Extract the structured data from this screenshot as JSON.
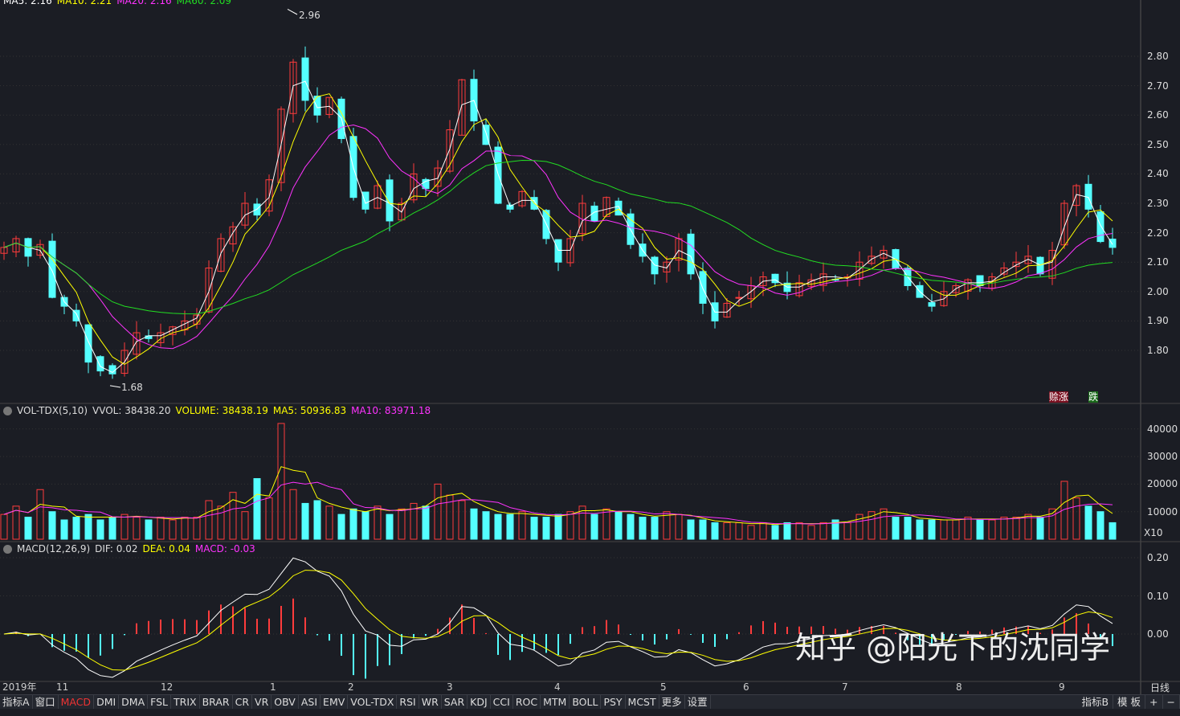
{
  "main": {
    "header_labels": [
      "MA5: 2.16",
      "MA10: 2.21",
      "MA20: 2.16",
      "MA60: 2.09"
    ],
    "high_label": "2.96",
    "low_label": "1.68",
    "marker_1": "赊",
    "marker_2": "涨",
    "marker_3": "跌",
    "price_ticks": [
      "2.80",
      "2.70",
      "2.60",
      "2.50",
      "2.40",
      "2.30",
      "2.20",
      "2.10",
      "2.00",
      "1.90",
      "1.80"
    ]
  },
  "volume": {
    "title": "VOL-TDX(5,10)",
    "vvol": "VVOL: 38438.20",
    "volume": "VOLUME: 38438.19",
    "ma5": "MA5: 50936.83",
    "ma10": "MA10: 83971.18",
    "ticks": [
      "40000",
      "30000",
      "20000",
      "10000"
    ],
    "unit": "X10"
  },
  "macd": {
    "title": "MACD(12,26,9)",
    "dif": "DIF: 0.02",
    "dea": "DEA: 0.04",
    "macd": "MACD: -0.03",
    "ticks": [
      "0.20",
      "0.10",
      "0.00"
    ]
  },
  "time_axis": [
    "2019年",
    "11",
    "12",
    "1",
    "2",
    "3",
    "4",
    "5",
    "6",
    "7",
    "8",
    "9"
  ],
  "period": "日线",
  "tabs": [
    "指标A",
    "窗口",
    "MACD",
    "DMI",
    "DMA",
    "FSL",
    "TRIX",
    "BRAR",
    "CR",
    "VR",
    "OBV",
    "ASI",
    "EMV",
    "VOL-TDX",
    "RSI",
    "WR",
    "SAR",
    "KDJ",
    "CCI",
    "ROC",
    "MTM",
    "BOLL",
    "PSY",
    "MCST",
    "更多",
    "设置"
  ],
  "active_tab": "MACD",
  "right_tabs": [
    "指标B",
    "模 板",
    "+",
    "−"
  ],
  "watermark": "知乎 @阳光下的沈同学",
  "colors": {
    "up": "#ff3c3c",
    "down": "#54ffff",
    "ma5": "#ffffff",
    "ma10": "#ffff00",
    "ma20": "#ff33ff",
    "ma60": "#22dd22"
  },
  "chart_data": {
    "type": "candlestick",
    "closes": [
      2.15,
      2.18,
      2.12,
      2.16,
      1.98,
      1.95,
      1.9,
      1.76,
      1.73,
      1.72,
      1.8,
      1.86,
      1.84,
      1.86,
      1.88,
      1.9,
      1.92,
      2.08,
      2.18,
      2.22,
      2.3,
      2.26,
      2.38,
      2.62,
      2.78,
      2.65,
      2.6,
      2.66,
      2.52,
      2.32,
      2.28,
      2.36,
      2.24,
      2.3,
      2.4,
      2.35,
      2.42,
      2.55,
      2.72,
      2.58,
      2.5,
      2.3,
      2.28,
      2.34,
      2.28,
      2.18,
      2.1,
      2.18,
      2.3,
      2.24,
      2.32,
      2.26,
      2.16,
      2.12,
      2.06,
      2.1,
      2.18,
      2.06,
      1.96,
      1.9,
      1.96,
      1.98,
      2.02,
      2.05,
      2.03,
      2.0,
      2.03,
      2.04,
      2.06,
      2.04,
      2.05,
      2.1,
      2.12,
      2.14,
      2.08,
      2.02,
      1.98,
      1.95,
      2.0,
      2.02,
      2.04,
      2.02,
      2.05,
      2.08,
      2.1,
      2.12,
      2.06,
      2.14,
      2.3,
      2.36,
      2.28,
      2.17,
      2.15
    ],
    "volumes": [
      9000,
      12000,
      8000,
      18000,
      10000,
      7000,
      8000,
      9000,
      7000,
      8000,
      9000,
      8000,
      7000,
      8000,
      7000,
      8000,
      8000,
      14000,
      12000,
      17000,
      10000,
      22000,
      15000,
      42000,
      18000,
      13000,
      14000,
      12000,
      9000,
      11000,
      10000,
      12000,
      9000,
      11000,
      13000,
      12000,
      20000,
      16000,
      14000,
      11000,
      10000,
      9000,
      9000,
      10000,
      8000,
      8000,
      9000,
      10000,
      12000,
      9000,
      11000,
      10000,
      9000,
      8000,
      8000,
      10000,
      9000,
      7000,
      7000,
      6000,
      6000,
      6000,
      5000,
      6000,
      5000,
      6000,
      6000,
      5000,
      6000,
      7000,
      6000,
      9000,
      10000,
      11000,
      8000,
      8000,
      7000,
      7000,
      7000,
      7000,
      8000,
      7000,
      7000,
      8000,
      8000,
      9000,
      8000,
      11000,
      21000,
      15000,
      12000,
      10000,
      6000
    ],
    "price_range": [
      1.6,
      3.0
    ],
    "volume_range": [
      0,
      45000
    ]
  }
}
